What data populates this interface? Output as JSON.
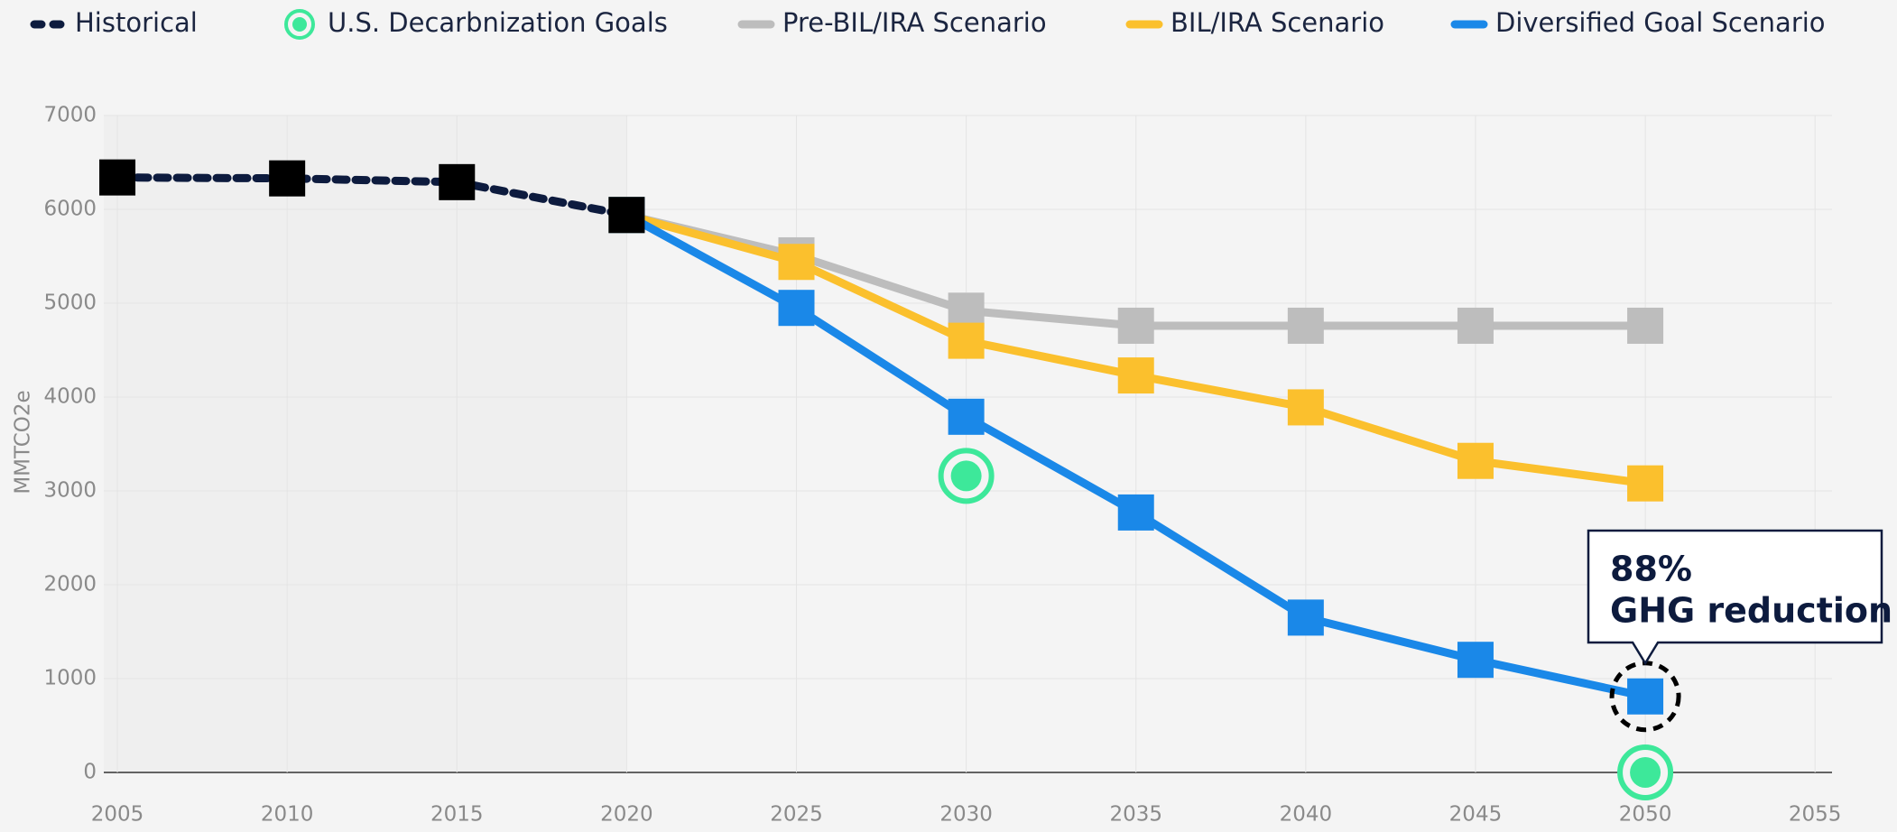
{
  "chart_data": {
    "type": "line",
    "ylabel": "MMTCO2e",
    "xlim": [
      2004.6,
      2055.5
    ],
    "xticks": [
      2005,
      2010,
      2015,
      2020,
      2025,
      2030,
      2035,
      2040,
      2045,
      2050,
      2055
    ],
    "ylim": [
      0,
      7000
    ],
    "yticks": [
      0,
      1000,
      2000,
      3000,
      4000,
      5000,
      6000,
      7000
    ],
    "grid": true,
    "legend": "top",
    "series": [
      {
        "name": "Historical",
        "color": "#0d1b3e",
        "marker_color": "#000000",
        "style": "dashed",
        "x": [
          2005,
          2010,
          2015,
          2020
        ],
        "values": [
          6340,
          6330,
          6290,
          5940
        ]
      },
      {
        "name": "U.S. Decarbnization Goals",
        "color": "#3de89a",
        "style": "points",
        "x": [
          2030,
          2050
        ],
        "values": [
          3160,
          0
        ]
      },
      {
        "name": "Pre-BIL/IRA Scenario",
        "color": "#bdbdbd",
        "style": "solid",
        "x": [
          2020,
          2025,
          2030,
          2035,
          2040,
          2045,
          2050
        ],
        "values": [
          5940,
          5510,
          4920,
          4760,
          4760,
          4760,
          4760
        ]
      },
      {
        "name": "BIL/IRA Scenario",
        "color": "#fbc02d",
        "style": "solid",
        "x": [
          2020,
          2025,
          2030,
          2035,
          2040,
          2045,
          2050
        ],
        "values": [
          5940,
          5440,
          4600,
          4230,
          3890,
          3320,
          3080
        ]
      },
      {
        "name": "Diversified Goal Scenario",
        "color": "#1a88e8",
        "style": "solid",
        "x": [
          2020,
          2025,
          2030,
          2035,
          2040,
          2045,
          2050
        ],
        "values": [
          5940,
          4950,
          3790,
          2770,
          1650,
          1200,
          810
        ]
      }
    ],
    "annotation": [
      "88%",
      "GHG reduction"
    ]
  }
}
